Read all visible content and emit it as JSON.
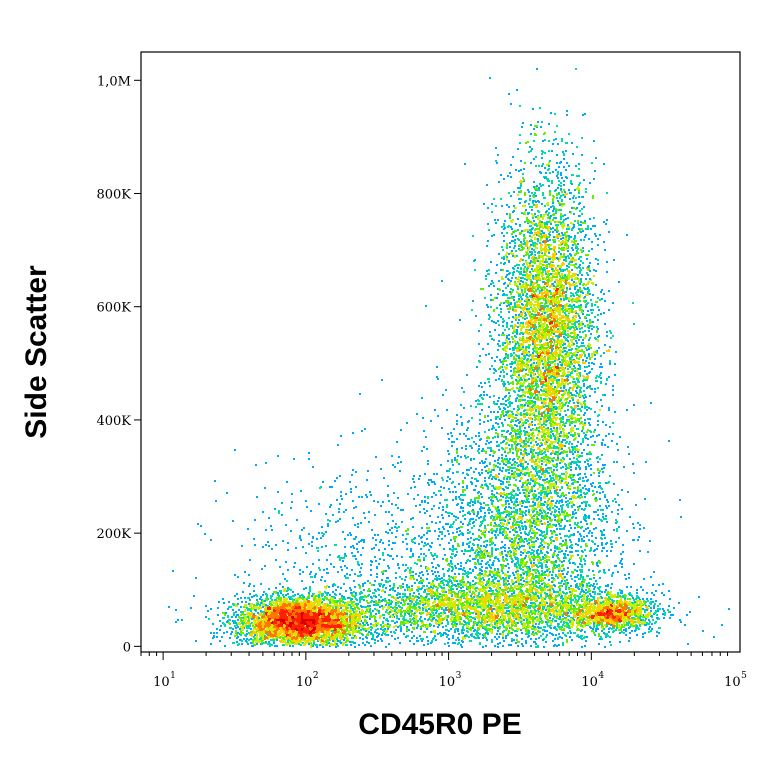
{
  "chart_data": {
    "type": "scatter",
    "style": "flow-cytometry-density-dot-plot",
    "xlabel": "CD45R0 PE",
    "ylabel": "Side Scatter",
    "xscale": "log",
    "yscale": "linear",
    "xlim": [
      7,
      110000
    ],
    "ylim": [
      -10000,
      1050000
    ],
    "x_ticks": [
      {
        "value": 10,
        "base": "10",
        "exp": "1"
      },
      {
        "value": 100,
        "base": "10",
        "exp": "2"
      },
      {
        "value": 1000,
        "base": "10",
        "exp": "3"
      },
      {
        "value": 10000,
        "base": "10",
        "exp": "4"
      },
      {
        "value": 100000,
        "base": "10",
        "exp": "5"
      }
    ],
    "y_ticks": [
      {
        "value": 0,
        "label": "0"
      },
      {
        "value": 200000,
        "label": "200K"
      },
      {
        "value": 400000,
        "label": "400K"
      },
      {
        "value": 600000,
        "label": "600K"
      },
      {
        "value": 800000,
        "label": "800K"
      },
      {
        "value": 1000000,
        "label": "1,0M"
      }
    ],
    "grid": false,
    "density_colors": [
      "#0000cc",
      "#0044ff",
      "#00aaff",
      "#00ddaa",
      "#66ee00",
      "#ccee00",
      "#ffcc00",
      "#ff7700",
      "#ff2200",
      "#dd0000"
    ],
    "populations": [
      {
        "center_x": 90,
        "center_y": 45000,
        "spread_log_x": 0.22,
        "spread_y": 22000,
        "count": 4200,
        "peak_density": "high"
      },
      {
        "center_x": 4800,
        "center_y": 560000,
        "spread_log_x": 0.17,
        "spread_y": 140000,
        "count": 6500,
        "peak_density": "medium"
      },
      {
        "center_x": 14000,
        "center_y": 60000,
        "spread_log_x": 0.14,
        "spread_y": 15000,
        "count": 1100,
        "peak_density": "medium"
      },
      {
        "center_x": 1800,
        "center_y": 70000,
        "spread_log_x": 0.5,
        "spread_y": 30000,
        "count": 3000,
        "peak_density": "low"
      },
      {
        "center_x": 3500,
        "center_y": 220000,
        "spread_log_x": 0.3,
        "spread_y": 120000,
        "count": 3500,
        "peak_density": "low"
      },
      {
        "center_x": 400,
        "center_y": 150000,
        "spread_log_x": 0.55,
        "spread_y": 90000,
        "count": 900,
        "peak_density": "low"
      }
    ]
  }
}
